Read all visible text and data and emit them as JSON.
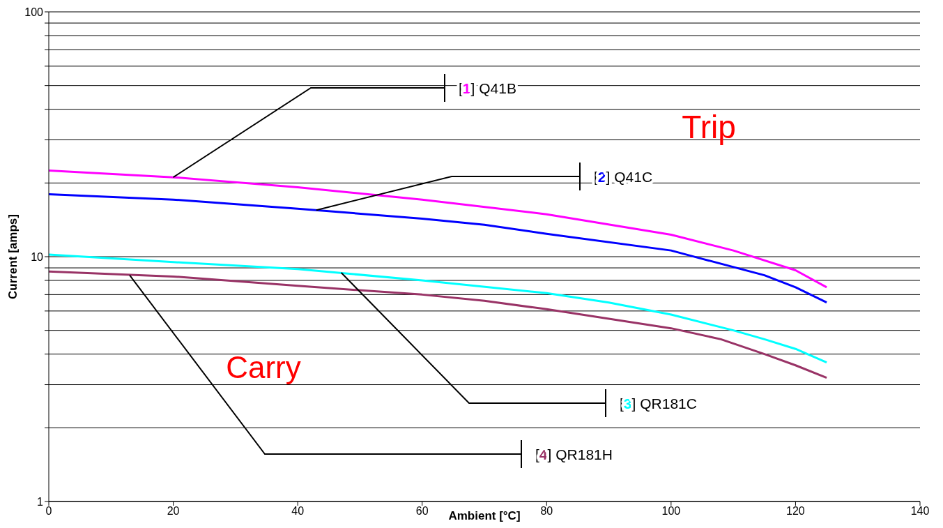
{
  "chart_data": {
    "type": "line",
    "xlabel": "Ambient [°C]",
    "ylabel": "Current [amps]",
    "log": "y",
    "grid": "y",
    "xlim": [
      0,
      140
    ],
    "xticks": [
      0,
      20,
      40,
      60,
      80,
      100,
      120,
      140
    ],
    "ylim": [
      1,
      100
    ],
    "yticks": [
      1,
      {
        "value": 2,
        "label": null
      },
      {
        "value": 3,
        "label": null
      },
      {
        "value": 4,
        "label": null
      },
      {
        "value": 5,
        "label": null
      },
      {
        "value": 6,
        "label": null
      },
      {
        "value": 7,
        "label": null
      },
      {
        "value": 8,
        "label": null
      },
      {
        "value": 9,
        "label": null
      },
      10,
      {
        "value": 20,
        "label": null
      },
      {
        "value": 30,
        "label": null
      },
      {
        "value": 40,
        "label": null
      },
      {
        "value": 50,
        "label": null
      },
      {
        "value": 60,
        "label": null
      },
      {
        "value": 70,
        "label": null
      },
      {
        "value": 80,
        "label": null
      },
      {
        "value": 90,
        "label": null
      },
      100
    ],
    "series": [
      {
        "color": "#ff00ff",
        "x": [
          0,
          20,
          40,
          60,
          80,
          100,
          110,
          120,
          125
        ],
        "values": [
          22.5,
          21.1,
          19.2,
          17.1,
          14.9,
          12.3,
          10.6,
          8.8,
          7.5
        ]
      },
      {
        "color": "#0000ff",
        "x": [
          0,
          20,
          40,
          60,
          70,
          80,
          100,
          105,
          115,
          120,
          125
        ],
        "values": [
          18.0,
          17.1,
          15.7,
          14.3,
          13.5,
          12.4,
          10.6,
          9.8,
          8.4,
          7.5,
          6.5
        ]
      },
      {
        "color": "#00ffff",
        "x": [
          0,
          20,
          40,
          60,
          80,
          90,
          100,
          110,
          115,
          120,
          125
        ],
        "values": [
          10.2,
          9.5,
          8.9,
          8.0,
          7.1,
          6.5,
          5.8,
          5.0,
          4.6,
          4.2,
          3.7
        ]
      },
      {
        "color": "#993366",
        "x": [
          0,
          20,
          40,
          60,
          70,
          80,
          100,
          108,
          115,
          120,
          125
        ],
        "values": [
          8.7,
          8.3,
          7.6,
          7.0,
          6.6,
          6.1,
          5.1,
          4.6,
          4.0,
          3.6,
          3.2
        ]
      }
    ],
    "annotations": [
      "Trip",
      "Carry",
      {
        "text": "[1] Q41B",
        "x": 20,
        "y": 21.1
      },
      {
        "text": "[2] Q41C",
        "x": 43,
        "y": 15.5
      },
      {
        "text": "[3] QR181C",
        "x": 47,
        "y": 8.6
      },
      {
        "text": "[4] QR181H",
        "x": 13,
        "y": 8.4
      }
    ]
  }
}
